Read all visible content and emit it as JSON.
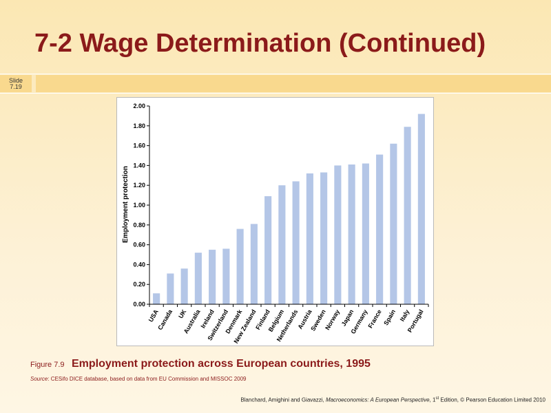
{
  "slide": {
    "title": "7-2  Wage Determination (Continued)",
    "number_line1": "Slide",
    "number_line2": "7.19"
  },
  "figure": {
    "label": "Figure 7.9",
    "title": "Employment protection across European countries, 1995",
    "source_label": "Source",
    "source_text": ": CESifo DICE database, based on data from EU Commission and MISSOC 2009"
  },
  "footer": {
    "authors": "Blanchard, Amighini and Giavazzi, ",
    "book": "Macroeconomics: A European Perspective",
    "edition_pre": ", 1",
    "edition_sup": "st",
    "edition_post": " Edition, © Pearson Education Limited 2010"
  },
  "colors": {
    "title": "#8b1a1a",
    "bar": "#b4c6e7",
    "band": "#f9d98e"
  },
  "chart_data": {
    "type": "bar",
    "title": "",
    "xlabel": "",
    "ylabel": "Employment protection",
    "ylim": [
      0,
      2
    ],
    "yticks": [
      "0.00",
      "0.20",
      "0.40",
      "0.60",
      "0.80",
      "1.00",
      "1.20",
      "1.40",
      "1.60",
      "1.80",
      "2.00"
    ],
    "grid": false,
    "categories": [
      "USA",
      "Canada",
      "UK",
      "Australia",
      "Ireland",
      "Switzerland",
      "Denmark",
      "New Zealand",
      "Finland",
      "Belgium",
      "Netherlands",
      "Austria",
      "Sweden",
      "Norway",
      "Japan",
      "Germany",
      "France",
      "Spain",
      "Italy",
      "Portugal"
    ],
    "values": [
      0.11,
      0.31,
      0.36,
      0.52,
      0.55,
      0.56,
      0.76,
      0.81,
      1.09,
      1.2,
      1.24,
      1.32,
      1.33,
      1.4,
      1.41,
      1.42,
      1.51,
      1.62,
      1.79,
      1.92
    ]
  }
}
